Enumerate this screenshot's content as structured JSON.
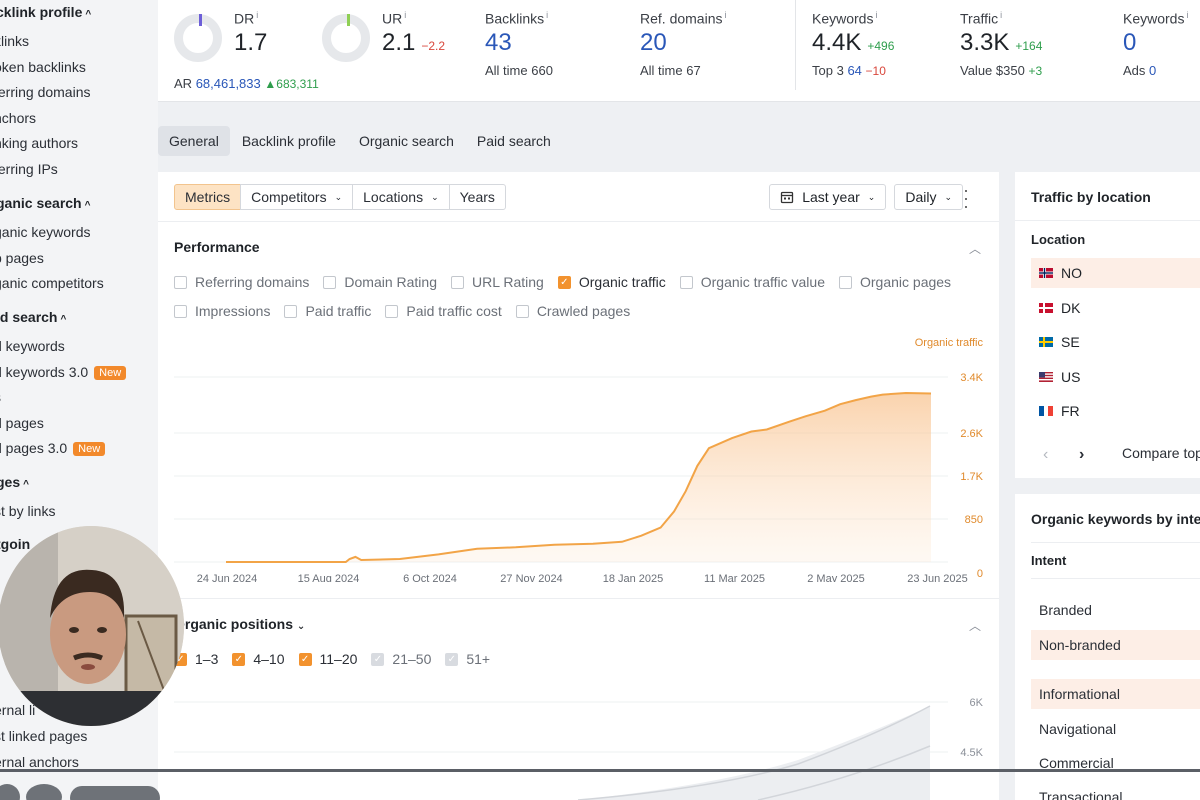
{
  "sidebar": {
    "sections": [
      {
        "title": "cklink profile",
        "top": 4,
        "items": [
          "klinks",
          "oken backlinks",
          "ferring domains",
          "nchors",
          "nking authors",
          "ferring IPs"
        ]
      },
      {
        "title": "ganic search",
        "top": 195,
        "items": [
          "ganic keywords",
          "p pages",
          "ganic competitors"
        ]
      },
      {
        "title": "id search",
        "top": 309,
        "items": [
          "d keywords",
          "d keywords 3.0",
          "s",
          "d pages",
          "d pages 3.0"
        ]
      },
      {
        "title": "ges",
        "top": 474,
        "items": [
          "st by links"
        ]
      },
      {
        "title": "tgoin",
        "top": 536,
        "items": []
      }
    ],
    "new_badge": "New",
    "bottom_items": [
      "ernal li",
      "st linked pages",
      "ernal anchors"
    ]
  },
  "metrics": {
    "dr": {
      "label": "DR",
      "info": "i",
      "value": "1.7",
      "sub_label": "AR",
      "sub_value": "68,461,833",
      "sub_delta": "▲683,311"
    },
    "ur": {
      "label": "UR",
      "info": "i",
      "value": "2.1",
      "delta": "−2.2"
    },
    "backlinks": {
      "label": "Backlinks",
      "info": "i",
      "value": "43",
      "sub_label": "All time",
      "sub_value": "660"
    },
    "ref_domains": {
      "label": "Ref. domains",
      "info": "i",
      "value": "20",
      "sub_label": "All time",
      "sub_value": "67"
    },
    "keywords": {
      "label": "Keywords",
      "info": "i",
      "value": "4.4K",
      "delta": "+496",
      "sub_label": "Top 3",
      "sub_value": "64",
      "sub_delta": "−10"
    },
    "traffic": {
      "label": "Traffic",
      "info": "i",
      "value": "3.3K",
      "delta": "+164",
      "sub_label": "Value",
      "sub_value": "$350",
      "sub_delta": "+3"
    },
    "paid_keywords": {
      "label": "Keywords",
      "info": "i",
      "value": "0",
      "sub_label": "Ads",
      "sub_value": "0"
    }
  },
  "tabs": [
    "General",
    "Backlink profile",
    "Organic search",
    "Paid search"
  ],
  "toolbar": {
    "segments": [
      "Metrics",
      "Competitors",
      "Locations",
      "Years"
    ],
    "period": "Last year",
    "granularity": "Daily"
  },
  "performance": {
    "title": "Performance",
    "row1": [
      {
        "label": "Referring domains",
        "checked": false
      },
      {
        "label": "Domain Rating",
        "checked": false
      },
      {
        "label": "URL Rating",
        "checked": false
      },
      {
        "label": "Organic traffic",
        "checked": true
      },
      {
        "label": "Organic traffic value",
        "checked": false
      },
      {
        "label": "Organic pages",
        "checked": false
      }
    ],
    "row2": [
      {
        "label": "Impressions",
        "checked": false
      },
      {
        "label": "Paid traffic",
        "checked": false
      },
      {
        "label": "Paid traffic cost",
        "checked": false
      },
      {
        "label": "Crawled pages",
        "checked": false
      }
    ]
  },
  "chart_data": {
    "type": "area",
    "series": [
      {
        "name": "Organic traffic",
        "color": "#f2a447"
      }
    ],
    "x_ticks": [
      "24 Jun 2024",
      "15 Aug 2024",
      "6 Oct 2024",
      "27 Nov 2024",
      "18 Jan 2025",
      "11 Mar 2025",
      "2 May 2025",
      "23 Jun 2025"
    ],
    "y_ticks": [
      "0",
      "850",
      "1.7K",
      "2.6K",
      "3.4K"
    ],
    "ylim": [
      0,
      3400
    ],
    "points": [
      [
        0,
        0
      ],
      [
        40,
        0
      ],
      [
        62,
        0
      ],
      [
        64,
        60
      ],
      [
        67,
        100
      ],
      [
        70,
        40
      ],
      [
        90,
        60
      ],
      [
        110,
        150
      ],
      [
        130,
        260
      ],
      [
        150,
        290
      ],
      [
        170,
        340
      ],
      [
        190,
        360
      ],
      [
        205,
        400
      ],
      [
        215,
        520
      ],
      [
        225,
        680
      ],
      [
        232,
        1000
      ],
      [
        238,
        1400
      ],
      [
        244,
        1900
      ],
      [
        250,
        2250
      ],
      [
        262,
        2450
      ],
      [
        272,
        2580
      ],
      [
        280,
        2620
      ],
      [
        292,
        2780
      ],
      [
        300,
        2880
      ],
      [
        310,
        2990
      ],
      [
        318,
        3120
      ],
      [
        326,
        3200
      ],
      [
        334,
        3270
      ],
      [
        340,
        3310
      ],
      [
        352,
        3340
      ],
      [
        365,
        3330
      ]
    ]
  },
  "positions": {
    "title": "Organic positions",
    "ranges": [
      {
        "label": "1–3",
        "state": "on"
      },
      {
        "label": "4–10",
        "state": "on"
      },
      {
        "label": "11–20",
        "state": "on"
      },
      {
        "label": "21–50",
        "state": "grey"
      },
      {
        "label": "51+",
        "state": "grey"
      }
    ],
    "y_ticks": [
      "6K",
      "4.5K"
    ]
  },
  "traffic_by_location": {
    "title": "Traffic by location",
    "col_header": "Location",
    "rows": [
      "NO",
      "DK",
      "SE",
      "US",
      "FR"
    ],
    "compare_label": "Compare top"
  },
  "intents": {
    "title": "Organic keywords by inter",
    "col_header": "Intent",
    "rows": [
      "Branded",
      "Non-branded",
      "Informational",
      "Navigational",
      "Commercial",
      "Transactional"
    ]
  }
}
